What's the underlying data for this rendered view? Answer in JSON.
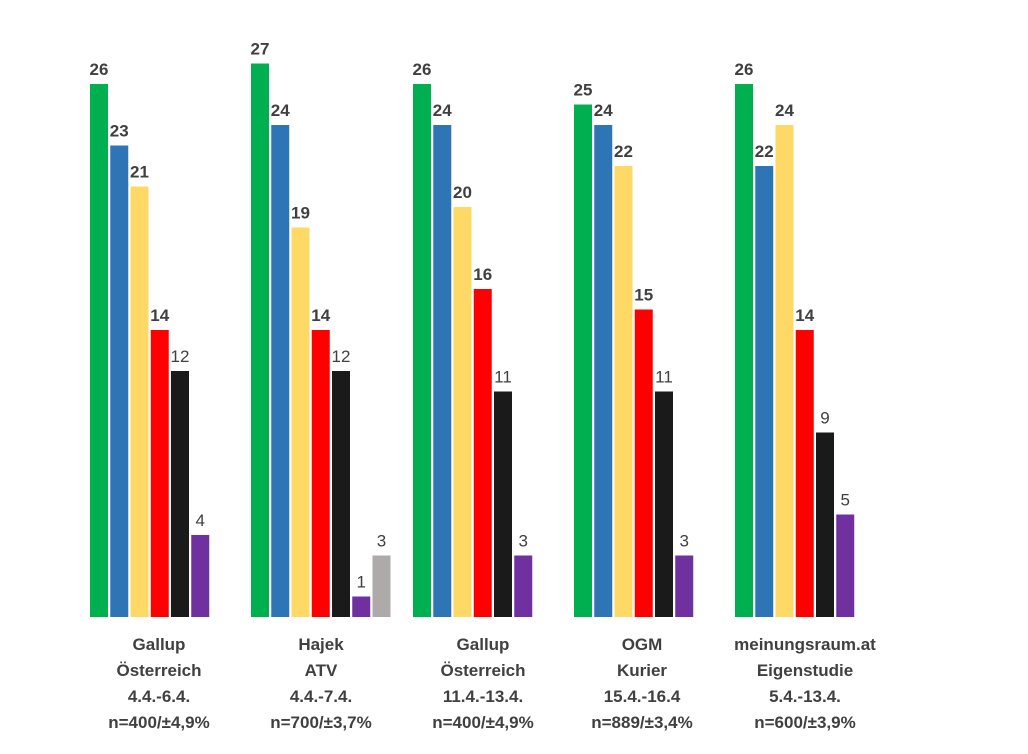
{
  "chart_data": {
    "type": "bar",
    "title": "",
    "xlabel": "",
    "ylabel": "",
    "ylim": [
      0,
      27
    ],
    "grid": false,
    "legend": "none",
    "categories": [
      [
        "Gallup",
        "Österreich",
        "4.4.-6.4.",
        "n=400/±4,9%"
      ],
      [
        "Hajek",
        "ATV",
        "4.4.-7.4.",
        "n=700/±3,7%"
      ],
      [
        "Gallup",
        "Österreich",
        "11.4.-13.4.",
        "n=400/±4,9%"
      ],
      [
        "OGM",
        "Kurier",
        "15.4.-16.4",
        "n=889/±3,4%"
      ],
      [
        "meinungsraum.at",
        "Eigenstudie",
        "5.4.-13.4.",
        "n=600/±3,9%"
      ]
    ],
    "groups": [
      {
        "bars": [
          {
            "value": 26,
            "color": "#00b050",
            "bold": true
          },
          {
            "value": 23,
            "color": "#2e75b6",
            "bold": true
          },
          {
            "value": 21,
            "color": "#ffd966",
            "bold": true
          },
          {
            "value": 14,
            "color": "#ff0000",
            "bold": true
          },
          {
            "value": 12,
            "color": "#1a1a1a",
            "bold": false
          },
          {
            "value": 4,
            "color": "#7030a0",
            "bold": false
          }
        ]
      },
      {
        "bars": [
          {
            "value": 27,
            "color": "#00b050",
            "bold": true
          },
          {
            "value": 24,
            "color": "#2e75b6",
            "bold": true
          },
          {
            "value": 19,
            "color": "#ffd966",
            "bold": true
          },
          {
            "value": 14,
            "color": "#ff0000",
            "bold": true
          },
          {
            "value": 12,
            "color": "#1a1a1a",
            "bold": false
          },
          {
            "value": 1,
            "color": "#7030a0",
            "bold": false
          },
          {
            "value": 3,
            "color": "#aeaaaa",
            "bold": false
          }
        ]
      },
      {
        "bars": [
          {
            "value": 26,
            "color": "#00b050",
            "bold": true
          },
          {
            "value": 24,
            "color": "#2e75b6",
            "bold": true
          },
          {
            "value": 20,
            "color": "#ffd966",
            "bold": true
          },
          {
            "value": 16,
            "color": "#ff0000",
            "bold": true
          },
          {
            "value": 11,
            "color": "#1a1a1a",
            "bold": false
          },
          {
            "value": 3,
            "color": "#7030a0",
            "bold": false
          }
        ]
      },
      {
        "bars": [
          {
            "value": 25,
            "color": "#00b050",
            "bold": true
          },
          {
            "value": 24,
            "color": "#2e75b6",
            "bold": true
          },
          {
            "value": 22,
            "color": "#ffd966",
            "bold": true
          },
          {
            "value": 15,
            "color": "#ff0000",
            "bold": true
          },
          {
            "value": 11,
            "color": "#1a1a1a",
            "bold": false
          },
          {
            "value": 3,
            "color": "#7030a0",
            "bold": false
          }
        ]
      },
      {
        "bars": [
          {
            "value": 26,
            "color": "#00b050",
            "bold": true
          },
          {
            "value": 22,
            "color": "#2e75b6",
            "bold": true
          },
          {
            "value": 24,
            "color": "#ffd966",
            "bold": true
          },
          {
            "value": 14,
            "color": "#ff0000",
            "bold": true
          },
          {
            "value": 9,
            "color": "#1a1a1a",
            "bold": false
          },
          {
            "value": 5,
            "color": "#7030a0",
            "bold": false
          }
        ]
      }
    ]
  }
}
